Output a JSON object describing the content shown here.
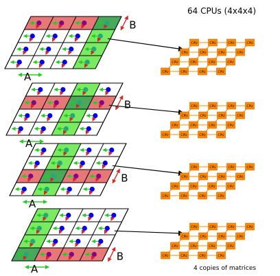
{
  "title": "64 CPUs (4x4x4)",
  "caption": "4 copies of matrices",
  "matrix_label_a": "A",
  "matrix_label_b": "B",
  "cpu_label": "CPU",
  "colors": {
    "green": "#7bea63",
    "red": "#e87878",
    "blue_dot": "#0000ee",
    "purple_dot": "#880088",
    "teal_dot": "#22aa77",
    "cpu_fill": "#ff8800",
    "cpu_edge": "#cc6600",
    "arrow_green": "#22cc22",
    "arrow_red": "#dd2222"
  },
  "panels": [
    {
      "green_column": 4,
      "red_row": 4,
      "b_label": "B",
      "a_label": "A"
    },
    {
      "green_column": 3,
      "red_row": 3,
      "b_label": "B",
      "a_label": "A"
    },
    {
      "green_column": 2,
      "red_row": 2,
      "b_label": "B",
      "a_label": "A"
    },
    {
      "green_column": 1,
      "red_row": 1,
      "b_label": "B",
      "a_label": "A"
    }
  ]
}
